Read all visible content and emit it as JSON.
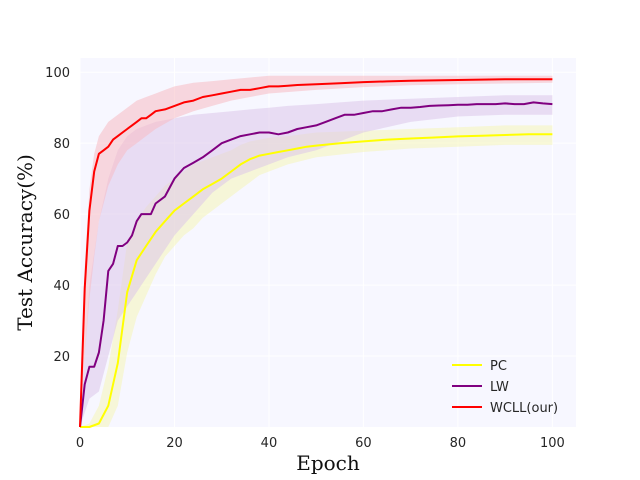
{
  "chart_data": {
    "type": "line",
    "title": "",
    "xlabel": "Epoch",
    "ylabel": "Test Accuracy(%)",
    "xlim": [
      0,
      105
    ],
    "ylim": [
      0,
      104
    ],
    "xticks": [
      0,
      20,
      40,
      60,
      80,
      100
    ],
    "yticks": [
      20,
      40,
      60,
      80,
      100
    ],
    "grid": true,
    "legend_position": "lower-right",
    "background": "#f7f7ff",
    "series": [
      {
        "name": "PC",
        "color": "#ffff00",
        "band_color": "#f5f5b8",
        "points": [
          [
            0,
            0
          ],
          [
            2,
            0
          ],
          [
            4,
            1
          ],
          [
            6,
            6
          ],
          [
            8,
            18
          ],
          [
            10,
            38
          ],
          [
            12,
            47
          ],
          [
            14,
            51
          ],
          [
            16,
            55
          ],
          [
            18,
            58
          ],
          [
            20,
            61
          ],
          [
            22,
            63
          ],
          [
            24,
            65
          ],
          [
            26,
            67
          ],
          [
            28,
            68.5
          ],
          [
            30,
            70
          ],
          [
            32,
            72
          ],
          [
            34,
            74
          ],
          [
            36,
            75.5
          ],
          [
            38,
            76.5
          ],
          [
            40,
            77
          ],
          [
            42,
            77.5
          ],
          [
            44,
            78
          ],
          [
            46,
            78.5
          ],
          [
            48,
            79
          ],
          [
            50,
            79.3
          ],
          [
            55,
            80
          ],
          [
            60,
            80.5
          ],
          [
            65,
            81
          ],
          [
            70,
            81.3
          ],
          [
            75,
            81.6
          ],
          [
            80,
            81.9
          ],
          [
            85,
            82.1
          ],
          [
            90,
            82.3
          ],
          [
            95,
            82.5
          ],
          [
            100,
            82.5
          ]
        ],
        "band": [
          [
            0,
            0,
            0
          ],
          [
            2,
            0,
            1
          ],
          [
            4,
            0,
            6
          ],
          [
            6,
            0,
            17
          ],
          [
            8,
            6,
            33
          ],
          [
            10,
            21,
            52
          ],
          [
            12,
            31,
            58
          ],
          [
            14,
            37,
            62
          ],
          [
            16,
            43,
            65
          ],
          [
            18,
            48,
            68
          ],
          [
            20,
            51,
            70
          ],
          [
            22,
            54,
            72
          ],
          [
            24,
            56,
            74
          ],
          [
            26,
            59,
            75
          ],
          [
            28,
            61,
            76
          ],
          [
            30,
            63,
            77
          ],
          [
            32,
            65,
            78
          ],
          [
            34,
            67,
            79.5
          ],
          [
            36,
            69,
            80.5
          ],
          [
            38,
            71,
            81
          ],
          [
            40,
            72,
            81.5
          ],
          [
            44,
            74,
            82
          ],
          [
            50,
            76,
            83
          ],
          [
            60,
            77.5,
            83.5
          ],
          [
            70,
            78.5,
            84
          ],
          [
            80,
            79,
            84.5
          ],
          [
            90,
            79.5,
            85
          ],
          [
            100,
            79.5,
            85
          ]
        ]
      },
      {
        "name": "LW",
        "color": "#800080",
        "band_color": "#ddc7ea",
        "points": [
          [
            0,
            0
          ],
          [
            1,
            12
          ],
          [
            2,
            17
          ],
          [
            3,
            17
          ],
          [
            4,
            21
          ],
          [
            5,
            30
          ],
          [
            6,
            44
          ],
          [
            7,
            46
          ],
          [
            8,
            51
          ],
          [
            9,
            51
          ],
          [
            10,
            52
          ],
          [
            11,
            54
          ],
          [
            12,
            58
          ],
          [
            13,
            60
          ],
          [
            14,
            60
          ],
          [
            15,
            60
          ],
          [
            16,
            63
          ],
          [
            18,
            65
          ],
          [
            20,
            70
          ],
          [
            22,
            73
          ],
          [
            24,
            74.5
          ],
          [
            26,
            76
          ],
          [
            28,
            78
          ],
          [
            30,
            80
          ],
          [
            32,
            81
          ],
          [
            34,
            82
          ],
          [
            36,
            82.5
          ],
          [
            38,
            83
          ],
          [
            40,
            83
          ],
          [
            42,
            82.5
          ],
          [
            44,
            83
          ],
          [
            46,
            84
          ],
          [
            48,
            84.5
          ],
          [
            50,
            85
          ],
          [
            52,
            86
          ],
          [
            54,
            87
          ],
          [
            56,
            88
          ],
          [
            58,
            88
          ],
          [
            60,
            88.5
          ],
          [
            62,
            89
          ],
          [
            64,
            89
          ],
          [
            66,
            89.5
          ],
          [
            68,
            90
          ],
          [
            70,
            90
          ],
          [
            72,
            90.2
          ],
          [
            74,
            90.5
          ],
          [
            76,
            90.6
          ],
          [
            78,
            90.7
          ],
          [
            80,
            90.8
          ],
          [
            82,
            90.8
          ],
          [
            84,
            91
          ],
          [
            86,
            91
          ],
          [
            88,
            91
          ],
          [
            90,
            91.2
          ],
          [
            92,
            91
          ],
          [
            94,
            91
          ],
          [
            96,
            91.5
          ],
          [
            98,
            91.2
          ],
          [
            100,
            91
          ]
        ],
        "band": [
          [
            0,
            0,
            0
          ],
          [
            2,
            8,
            40
          ],
          [
            4,
            10,
            58
          ],
          [
            6,
            20,
            70
          ],
          [
            8,
            30,
            78
          ],
          [
            10,
            34,
            82
          ],
          [
            12,
            38,
            84
          ],
          [
            14,
            42,
            85
          ],
          [
            16,
            46,
            86
          ],
          [
            18,
            50,
            86.5
          ],
          [
            20,
            54,
            87
          ],
          [
            24,
            60,
            88
          ],
          [
            28,
            66,
            88.5
          ],
          [
            32,
            70,
            89
          ],
          [
            36,
            72,
            89.5
          ],
          [
            40,
            74,
            90
          ],
          [
            44,
            76,
            90.5
          ],
          [
            50,
            78,
            91
          ],
          [
            60,
            83,
            92
          ],
          [
            70,
            86,
            92.5
          ],
          [
            80,
            87.5,
            93
          ],
          [
            90,
            88,
            93.5
          ],
          [
            100,
            88,
            93.5
          ]
        ]
      },
      {
        "name": "WCLL(our)",
        "color": "#ff0000",
        "band_color": "#f7bcc2",
        "points": [
          [
            0,
            0
          ],
          [
            1,
            39
          ],
          [
            2,
            61
          ],
          [
            3,
            72
          ],
          [
            4,
            77
          ],
          [
            5,
            78
          ],
          [
            6,
            79
          ],
          [
            7,
            81
          ],
          [
            8,
            82
          ],
          [
            9,
            83
          ],
          [
            10,
            84
          ],
          [
            11,
            85
          ],
          [
            12,
            86
          ],
          [
            13,
            87
          ],
          [
            14,
            87
          ],
          [
            15,
            88
          ],
          [
            16,
            89
          ],
          [
            18,
            89.5
          ],
          [
            20,
            90.5
          ],
          [
            22,
            91.5
          ],
          [
            24,
            92
          ],
          [
            26,
            93
          ],
          [
            28,
            93.5
          ],
          [
            30,
            94
          ],
          [
            32,
            94.5
          ],
          [
            34,
            95
          ],
          [
            36,
            95
          ],
          [
            38,
            95.5
          ],
          [
            40,
            96
          ],
          [
            42,
            96
          ],
          [
            44,
            96.2
          ],
          [
            46,
            96.4
          ],
          [
            48,
            96.5
          ],
          [
            50,
            96.6
          ],
          [
            55,
            96.9
          ],
          [
            60,
            97.2
          ],
          [
            65,
            97.4
          ],
          [
            70,
            97.6
          ],
          [
            75,
            97.7
          ],
          [
            80,
            97.8
          ],
          [
            85,
            97.9
          ],
          [
            90,
            98
          ],
          [
            95,
            98
          ],
          [
            100,
            98
          ]
        ],
        "band": [
          [
            0,
            0,
            0
          ],
          [
            1,
            20,
            45
          ],
          [
            2,
            36,
            67
          ],
          [
            3,
            48,
            77
          ],
          [
            4,
            58,
            82
          ],
          [
            6,
            68,
            86
          ],
          [
            8,
            74,
            88
          ],
          [
            10,
            78,
            90
          ],
          [
            12,
            80,
            92
          ],
          [
            14,
            82,
            93
          ],
          [
            16,
            84,
            94
          ],
          [
            18,
            85.5,
            95
          ],
          [
            20,
            87,
            96
          ],
          [
            24,
            89,
            97
          ],
          [
            28,
            90.5,
            97.5
          ],
          [
            32,
            92,
            98
          ],
          [
            36,
            93,
            98.5
          ],
          [
            40,
            94,
            99
          ],
          [
            50,
            95,
            99
          ],
          [
            60,
            95.8,
            99
          ],
          [
            70,
            96.3,
            99
          ],
          [
            80,
            96.6,
            99
          ],
          [
            90,
            96.8,
            99
          ],
          [
            100,
            97,
            99
          ]
        ]
      }
    ]
  }
}
